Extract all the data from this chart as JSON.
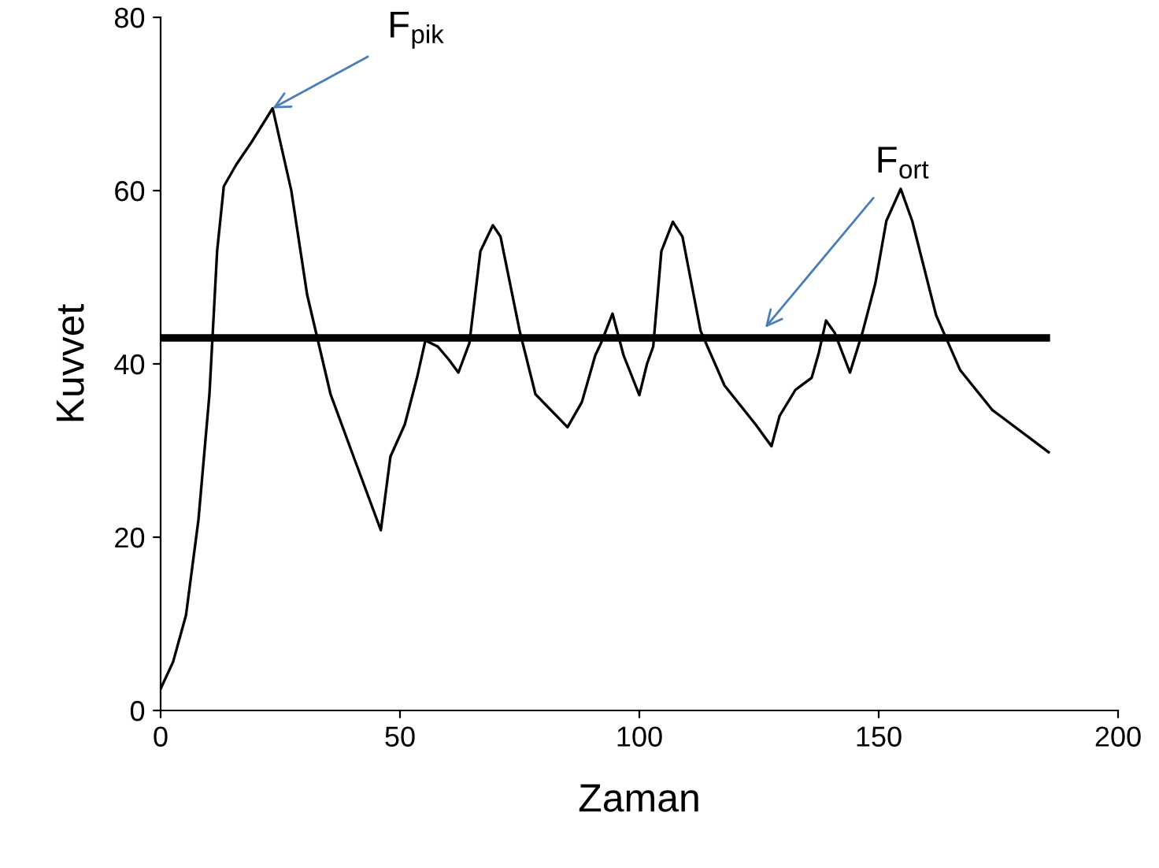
{
  "chart_data": {
    "type": "line",
    "xlabel": "Zaman",
    "ylabel": "Kuvvet",
    "xlim": [
      0,
      200
    ],
    "ylim": [
      0,
      80
    ],
    "xticks": [
      0,
      50,
      100,
      150,
      200
    ],
    "yticks": [
      0,
      20,
      40,
      60,
      80
    ],
    "grid": false,
    "marker": "none",
    "series": [
      {
        "color": "#000000",
        "x": [
          0,
          2.6,
          5.3,
          7.9,
          10.2,
          11.8,
          13.2,
          15.8,
          19,
          23.4,
          27.3,
          30.6,
          35.5,
          40.5,
          46,
          48,
          51,
          53.6,
          55.3,
          57.9,
          60.2,
          62.2,
          64.5,
          66.8,
          69.4,
          71,
          75,
          78.3,
          85,
          88,
          90.8,
          92,
          94.4,
          96.7,
          100,
          101.6,
          102.9,
          104.6,
          107,
          109,
          112.8,
          117.8,
          124.3,
          127.6,
          129.3,
          132.6,
          136,
          137.5,
          139,
          140.8,
          144,
          146.7,
          149.3,
          151.6,
          154.6,
          157,
          162,
          167,
          173.7,
          185.5
        ],
        "values": [
          2.5,
          5.6,
          11,
          22,
          36.5,
          53,
          60.5,
          63,
          65.6,
          69.5,
          60,
          48,
          36.5,
          29,
          20.8,
          29.3,
          33,
          38.5,
          42.7,
          42,
          40.5,
          39,
          42.4,
          53,
          56,
          54.7,
          43.8,
          36.5,
          32.7,
          35.6,
          41,
          42.4,
          45.8,
          41,
          36.4,
          40,
          42,
          53,
          56.4,
          54.7,
          43.8,
          37.5,
          33,
          30.5,
          34,
          37,
          38.4,
          41.3,
          45,
          43.6,
          39,
          43.8,
          49.3,
          56.5,
          60.2,
          56.5,
          45.6,
          39.3,
          34.7,
          29.8
        ]
      },
      {
        "color": "#000000",
        "x": [
          0,
          185
        ],
        "values": [
          43,
          43
        ]
      }
    ],
    "annotations": [
      {
        "text": "F$_{pik}$",
        "x": 23.4,
        "y": 69.5
      },
      {
        "text": "F$_{ort}$",
        "x": 126.3,
        "y": 44.2
      }
    ]
  }
}
